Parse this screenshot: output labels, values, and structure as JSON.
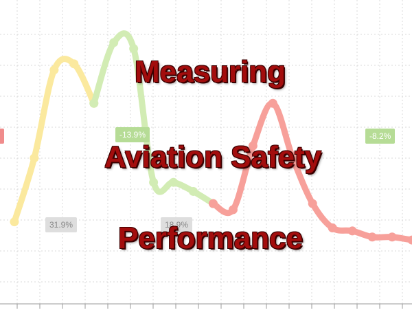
{
  "title_lines": [
    "Measuring",
    "Aviation Safety",
    "Performance"
  ],
  "badges": [
    {
      "text": "-13.9%",
      "tone": "green"
    },
    {
      "text": "-8.2%",
      "tone": "green"
    },
    {
      "text": "31.9%",
      "tone": "gray"
    },
    {
      "text": "18.9%",
      "tone": "gray"
    },
    {
      "text": "",
      "tone": "red"
    }
  ],
  "colors": {
    "yellow": "#fbe99e",
    "green": "#d2ecb4",
    "red": "#f7a09a",
    "grid": "#d8d8d8",
    "title": "#a30d0d"
  },
  "chart_data": {
    "type": "line",
    "title": "",
    "xlabel": "",
    "ylabel": "",
    "grid": true,
    "series": [
      {
        "color": "yellow",
        "points": [
          [
            1,
            27
          ],
          [
            2,
            48
          ],
          [
            3,
            77
          ],
          [
            4,
            79
          ],
          [
            5,
            66
          ]
        ]
      },
      {
        "color": "green",
        "points": [
          [
            5,
            66
          ],
          [
            6,
            86
          ],
          [
            7,
            84
          ],
          [
            8,
            40
          ],
          [
            9,
            40
          ],
          [
            10,
            37
          ],
          [
            11,
            33
          ]
        ]
      },
      {
        "color": "red",
        "points": [
          [
            11,
            33
          ],
          [
            12,
            31
          ],
          [
            13,
            52
          ],
          [
            14,
            66
          ],
          [
            15,
            48
          ],
          [
            16,
            33
          ],
          [
            17,
            25
          ],
          [
            18,
            24
          ],
          [
            19,
            22
          ],
          [
            20,
            22
          ],
          [
            21,
            21
          ]
        ]
      }
    ]
  }
}
